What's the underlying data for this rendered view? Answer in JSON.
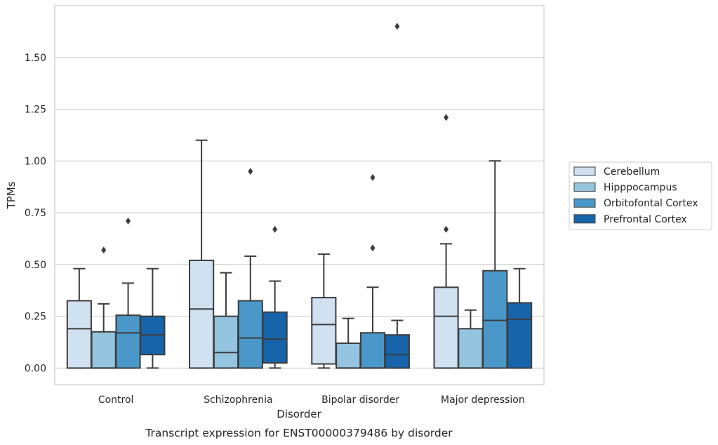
{
  "chart_data": {
    "type": "box",
    "title": "",
    "caption": "Transcript expression for ENST00000379486 by disorder",
    "xlabel": "Disorder",
    "ylabel": "TPMs",
    "ylim": [
      -0.08,
      1.75
    ],
    "yticks": [
      "0.00",
      "0.25",
      "0.50",
      "0.75",
      "1.00",
      "1.25",
      "1.50"
    ],
    "categories": [
      "Control",
      "Schizophrenia",
      "Bipolar disorder",
      "Major depression"
    ],
    "grid": "horizontal",
    "legend_position": "right",
    "series": [
      {
        "name": "Cerebellum",
        "color": "#d0e1f2",
        "boxes": [
          {
            "whislo": 0.0,
            "q1": 0.0,
            "med": 0.19,
            "q3": 0.325,
            "whishi": 0.48,
            "fliers": []
          },
          {
            "whislo": 0.0,
            "q1": 0.0,
            "med": 0.285,
            "q3": 0.52,
            "whishi": 1.1,
            "fliers": []
          },
          {
            "whislo": 0.0,
            "q1": 0.02,
            "med": 0.21,
            "q3": 0.34,
            "whishi": 0.55,
            "fliers": []
          },
          {
            "whislo": 0.0,
            "q1": 0.0,
            "med": 0.25,
            "q3": 0.39,
            "whishi": 0.6,
            "fliers": [
              0.67,
              1.21
            ]
          }
        ]
      },
      {
        "name": "Hipppocampus",
        "color": "#94c4df",
        "boxes": [
          {
            "whislo": 0.0,
            "q1": 0.0,
            "med": 0.0,
            "q3": 0.175,
            "whishi": 0.31,
            "fliers": [
              0.57
            ]
          },
          {
            "whislo": 0.0,
            "q1": 0.0,
            "med": 0.075,
            "q3": 0.25,
            "whishi": 0.46,
            "fliers": []
          },
          {
            "whislo": 0.0,
            "q1": 0.0,
            "med": 0.0,
            "q3": 0.12,
            "whishi": 0.24,
            "fliers": []
          },
          {
            "whislo": 0.0,
            "q1": 0.0,
            "med": 0.0,
            "q3": 0.19,
            "whishi": 0.28,
            "fliers": []
          }
        ]
      },
      {
        "name": "Orbitofontal Cortex",
        "color": "#4a98c9",
        "boxes": [
          {
            "whislo": 0.0,
            "q1": 0.0,
            "med": 0.17,
            "q3": 0.255,
            "whishi": 0.41,
            "fliers": [
              0.71
            ]
          },
          {
            "whislo": 0.0,
            "q1": 0.0,
            "med": 0.145,
            "q3": 0.325,
            "whishi": 0.54,
            "fliers": [
              0.95
            ]
          },
          {
            "whislo": 0.0,
            "q1": 0.0,
            "med": 0.0,
            "q3": 0.17,
            "whishi": 0.39,
            "fliers": [
              0.58,
              0.92
            ]
          },
          {
            "whislo": 0.0,
            "q1": 0.0,
            "med": 0.23,
            "q3": 0.47,
            "whishi": 1.0,
            "fliers": []
          }
        ]
      },
      {
        "name": "Prefrontal Cortex",
        "color": "#1764ab",
        "boxes": [
          {
            "whislo": 0.0,
            "q1": 0.065,
            "med": 0.16,
            "q3": 0.25,
            "whishi": 0.48,
            "fliers": []
          },
          {
            "whislo": 0.0,
            "q1": 0.025,
            "med": 0.14,
            "q3": 0.27,
            "whishi": 0.42,
            "fliers": [
              0.67
            ]
          },
          {
            "whislo": 0.0,
            "q1": 0.0,
            "med": 0.065,
            "q3": 0.16,
            "whishi": 0.23,
            "fliers": [
              1.65
            ]
          },
          {
            "whislo": 0.0,
            "q1": 0.0,
            "med": 0.235,
            "q3": 0.315,
            "whishi": 0.48,
            "fliers": []
          }
        ]
      }
    ]
  }
}
